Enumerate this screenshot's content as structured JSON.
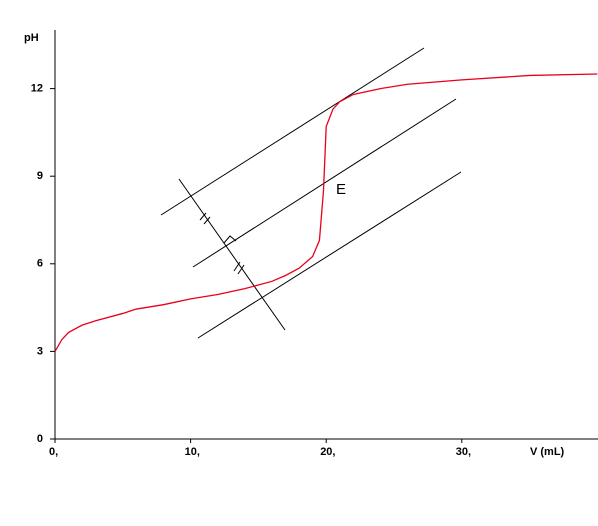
{
  "chart_data": {
    "type": "line",
    "y_label": "pH",
    "x_label": "V (mL)",
    "annotation": "E",
    "xlim": [
      0,
      40
    ],
    "ylim": [
      0,
      14
    ],
    "xticks": [
      {
        "value": 0,
        "label": "0,"
      },
      {
        "value": 10,
        "label": "10,"
      },
      {
        "value": 20,
        "label": "20,"
      },
      {
        "value": 30,
        "label": "30,"
      }
    ],
    "yticks": [
      0,
      3,
      6,
      9,
      12
    ],
    "x": [
      0,
      0.5,
      1,
      2,
      3,
      5,
      6,
      8,
      10,
      12,
      14,
      16,
      17,
      18,
      19,
      19.5,
      19.8,
      20,
      20.5,
      21,
      22,
      24,
      26,
      30,
      35,
      40
    ],
    "series": [
      {
        "color": "#e8001c",
        "values": [
          3.0,
          3.4,
          3.65,
          3.9,
          4.05,
          4.3,
          4.45,
          4.6,
          4.8,
          4.95,
          5.15,
          5.4,
          5.6,
          5.85,
          6.25,
          6.8,
          8.5,
          10.7,
          11.3,
          11.55,
          11.8,
          12.0,
          12.15,
          12.3,
          12.45,
          12.5
        ]
      }
    ]
  }
}
